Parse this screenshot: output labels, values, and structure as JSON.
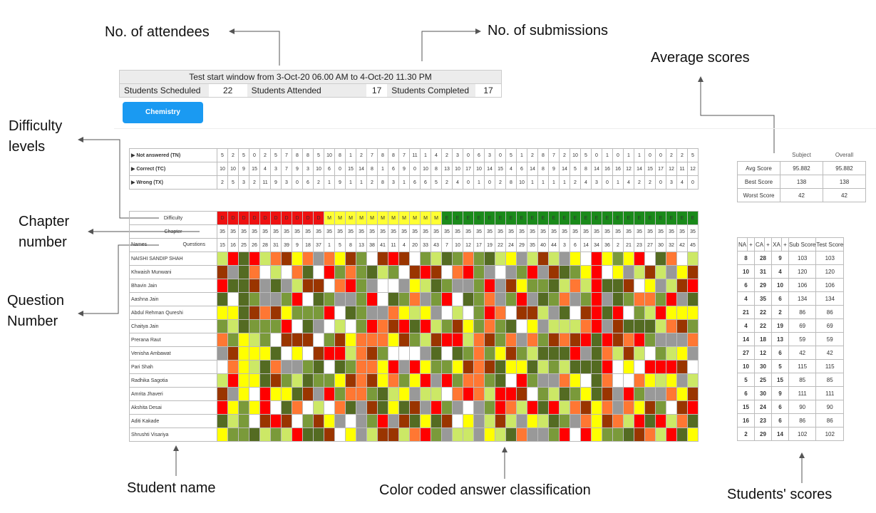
{
  "annotations": {
    "attendees": "No. of attendees",
    "submissions": "No. of submissions",
    "average_scores": "Average scores",
    "difficulty_levels_1": "Difficulty",
    "difficulty_levels_2": "levels",
    "chapter_number_1": "Chapter",
    "chapter_number_2": "number",
    "question_number_1": "Question",
    "question_number_2": "Number",
    "student_name": "Student name",
    "color_coded": "Color coded answer classification",
    "students_scores": "Students' scores"
  },
  "header": {
    "title": "Test start window from 3-Oct-20 06.00 AM to 4-Oct-20 11.30 PM",
    "scheduled_label": "Students Scheduled",
    "scheduled_value": "22",
    "attended_label": "Students Attended",
    "attended_value": "17",
    "completed_label": "Students Completed",
    "completed_value": "17"
  },
  "subject_button": "Chemistry",
  "counts": {
    "rows": [
      {
        "label": "▶ Not answered (TN)",
        "values": [
          5,
          2,
          5,
          0,
          2,
          5,
          7,
          8,
          8,
          5,
          10,
          8,
          1,
          2,
          7,
          8,
          8,
          7,
          11,
          1,
          4,
          2,
          3,
          0,
          6,
          3,
          0,
          5,
          1,
          2,
          8,
          7,
          2,
          10,
          5,
          0,
          1,
          0,
          1,
          1,
          0,
          0,
          2,
          2,
          5
        ]
      },
      {
        "label": "▶ Correct (TC)",
        "values": [
          10,
          10,
          9,
          15,
          4,
          3,
          7,
          9,
          3,
          10,
          6,
          0,
          15,
          14,
          8,
          1,
          6,
          9,
          0,
          10,
          8,
          13,
          10,
          17,
          10,
          14,
          15,
          4,
          6,
          14,
          8,
          9,
          14,
          5,
          8,
          14,
          16,
          16,
          12,
          14,
          15,
          17,
          12,
          11,
          12
        ]
      },
      {
        "label": "▶ Wrong (TX)",
        "values": [
          2,
          5,
          3,
          2,
          11,
          9,
          3,
          0,
          6,
          2,
          1,
          9,
          1,
          1,
          2,
          8,
          3,
          1,
          6,
          6,
          5,
          2,
          4,
          0,
          1,
          0,
          2,
          8,
          10,
          1,
          1,
          1,
          1,
          2,
          4,
          3,
          0,
          1,
          4,
          2,
          2,
          0,
          3,
          4,
          0
        ]
      }
    ]
  },
  "average": {
    "col_subject": "Subject",
    "col_overall": "Overall",
    "rows": [
      {
        "label": "Avg Score",
        "subject": "95.882",
        "overall": "95.882"
      },
      {
        "label": "Best Score",
        "subject": "138",
        "overall": "138"
      },
      {
        "label": "Worst Score",
        "subject": "42",
        "overall": "42"
      }
    ]
  },
  "grid": {
    "difficulty_label": "Difficulty",
    "chapter_label": "Chapter",
    "names_label": "Names",
    "questions_label": "Questions",
    "difficulty": [
      "D",
      "D",
      "D",
      "D",
      "D",
      "D",
      "D",
      "D",
      "D",
      "D",
      "M",
      "M",
      "M",
      "M",
      "M",
      "M",
      "M",
      "M",
      "M",
      "M",
      "M",
      "E",
      "E",
      "E",
      "E",
      "E",
      "E",
      "E",
      "E",
      "E",
      "E",
      "E",
      "E",
      "E",
      "E",
      "E",
      "E",
      "E",
      "E",
      "E",
      "E",
      "E",
      "E",
      "E",
      "E"
    ],
    "chapters": [
      35,
      35,
      35,
      35,
      35,
      35,
      35,
      35,
      35,
      35,
      35,
      35,
      35,
      35,
      35,
      35,
      35,
      35,
      35,
      35,
      35,
      35,
      35,
      35,
      35,
      35,
      35,
      35,
      35,
      35,
      35,
      35,
      35,
      35,
      35,
      35,
      35,
      35,
      35,
      35,
      35,
      35,
      35,
      35,
      35
    ],
    "questions": [
      15,
      16,
      25,
      26,
      28,
      31,
      39,
      9,
      18,
      37,
      1,
      5,
      8,
      13,
      38,
      41,
      11,
      4,
      20,
      33,
      43,
      7,
      10,
      12,
      17,
      19,
      22,
      24,
      29,
      35,
      40,
      44,
      3,
      6,
      14,
      34,
      36,
      2,
      21,
      23,
      27,
      30,
      32,
      42,
      45
    ],
    "students": [
      "NAISHI SANDIP SHAH",
      "Khwaish Munwani",
      "Bhavin Jain",
      "Aashna Jain",
      "Abdul Rehman Qureshi",
      "Chaitya Jain",
      "Prerana Raut",
      "Venisha Ambawat",
      "Pari Shah",
      "Radhika Sagotia",
      "Amrita Jhaveri",
      "Akshita Desai",
      "Aditi Kakade",
      "Shrushti Visariya"
    ]
  },
  "scores": {
    "col_na": "NA",
    "col_ca": "CA",
    "col_xa": "XA",
    "plus": "+",
    "col_sub": "Sub Score",
    "col_test": "Test Score",
    "rows": [
      [
        "8",
        "28",
        "9",
        "103",
        "103"
      ],
      [
        "10",
        "31",
        "4",
        "120",
        "120"
      ],
      [
        "6",
        "29",
        "10",
        "106",
        "106"
      ],
      [
        "4",
        "35",
        "6",
        "134",
        "134"
      ],
      [
        "21",
        "22",
        "2",
        "86",
        "86"
      ],
      [
        "4",
        "22",
        "19",
        "69",
        "69"
      ],
      [
        "14",
        "18",
        "13",
        "59",
        "59"
      ],
      [
        "27",
        "12",
        "6",
        "42",
        "42"
      ],
      [
        "10",
        "30",
        "5",
        "115",
        "115"
      ],
      [
        "5",
        "25",
        "15",
        "85",
        "85"
      ],
      [
        "6",
        "30",
        "9",
        "111",
        "111"
      ],
      [
        "15",
        "24",
        "6",
        "90",
        "90"
      ],
      [
        "16",
        "23",
        "6",
        "86",
        "86"
      ],
      [
        "2",
        "29",
        "14",
        "102",
        "102"
      ]
    ]
  },
  "colors": {
    "hard": "#ee1111",
    "medium": "#ffff33",
    "easy": "#1a8a1a",
    "palette": [
      "#cce866",
      "#ffff00",
      "#ffffff",
      "#546b22",
      "#999999",
      "#ff0000",
      "#ff7733",
      "#9a3500",
      "#7a9a3a"
    ]
  }
}
